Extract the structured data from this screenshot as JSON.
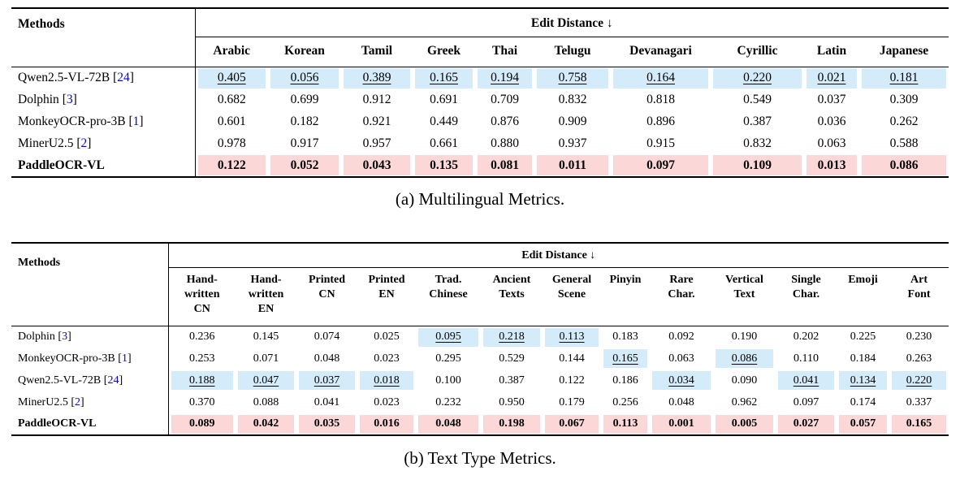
{
  "colors": {
    "second_best_bg": "#D4EBF9",
    "best_bg": "#FCD7D7",
    "citation": "#0000EE"
  },
  "tables": [
    {
      "id": "multilingual",
      "caption": "(a) Multilingual Metrics.",
      "methods_header": "Methods",
      "group_header": "Edit Distance ↓",
      "columns": [
        {
          "label": "Arabic",
          "lines": [
            "Arabic"
          ]
        },
        {
          "label": "Korean",
          "lines": [
            "Korean"
          ]
        },
        {
          "label": "Tamil",
          "lines": [
            "Tamil"
          ]
        },
        {
          "label": "Greek",
          "lines": [
            "Greek"
          ]
        },
        {
          "label": "Thai",
          "lines": [
            "Thai"
          ]
        },
        {
          "label": "Telugu",
          "lines": [
            "Telugu"
          ]
        },
        {
          "label": "Devanagari",
          "lines": [
            "Devanagari"
          ]
        },
        {
          "label": "Cyrillic",
          "lines": [
            "Cyrillic"
          ]
        },
        {
          "label": "Latin",
          "lines": [
            "Latin"
          ]
        },
        {
          "label": "Japanese",
          "lines": [
            "Japanese"
          ]
        }
      ],
      "rows": [
        {
          "method": "Qwen2.5-VL-72B",
          "cite": "24",
          "bold": false,
          "values": [
            {
              "v": "0.405",
              "hl": "second",
              "u": true
            },
            {
              "v": "0.056",
              "hl": "second",
              "u": true
            },
            {
              "v": "0.389",
              "hl": "second",
              "u": true
            },
            {
              "v": "0.165",
              "hl": "second",
              "u": true
            },
            {
              "v": "0.194",
              "hl": "second",
              "u": true
            },
            {
              "v": "0.758",
              "hl": "second",
              "u": true
            },
            {
              "v": "0.164",
              "hl": "second",
              "u": true
            },
            {
              "v": "0.220",
              "hl": "second",
              "u": true
            },
            {
              "v": "0.021",
              "hl": "second",
              "u": true
            },
            {
              "v": "0.181",
              "hl": "second",
              "u": true
            }
          ]
        },
        {
          "method": "Dolphin",
          "cite": "3",
          "bold": false,
          "values": [
            {
              "v": "0.682"
            },
            {
              "v": "0.699"
            },
            {
              "v": "0.912"
            },
            {
              "v": "0.691"
            },
            {
              "v": "0.709"
            },
            {
              "v": "0.832"
            },
            {
              "v": "0.818"
            },
            {
              "v": "0.549"
            },
            {
              "v": "0.037"
            },
            {
              "v": "0.309"
            }
          ]
        },
        {
          "method": "MonkeyOCR-pro-3B",
          "cite": "1",
          "bold": false,
          "values": [
            {
              "v": "0.601"
            },
            {
              "v": "0.182"
            },
            {
              "v": "0.921"
            },
            {
              "v": "0.449"
            },
            {
              "v": "0.876"
            },
            {
              "v": "0.909"
            },
            {
              "v": "0.896"
            },
            {
              "v": "0.387"
            },
            {
              "v": "0.036"
            },
            {
              "v": "0.262"
            }
          ]
        },
        {
          "method": "MinerU2.5",
          "cite": "2",
          "bold": false,
          "values": [
            {
              "v": "0.978"
            },
            {
              "v": "0.917"
            },
            {
              "v": "0.957"
            },
            {
              "v": "0.661"
            },
            {
              "v": "0.880"
            },
            {
              "v": "0.937"
            },
            {
              "v": "0.915"
            },
            {
              "v": "0.832"
            },
            {
              "v": "0.063"
            },
            {
              "v": "0.588"
            }
          ]
        },
        {
          "method": "PaddleOCR-VL",
          "cite": null,
          "bold": true,
          "values": [
            {
              "v": "0.122",
              "hl": "best"
            },
            {
              "v": "0.052",
              "hl": "best"
            },
            {
              "v": "0.043",
              "hl": "best"
            },
            {
              "v": "0.135",
              "hl": "best"
            },
            {
              "v": "0.081",
              "hl": "best"
            },
            {
              "v": "0.011",
              "hl": "best"
            },
            {
              "v": "0.097",
              "hl": "best"
            },
            {
              "v": "0.109",
              "hl": "best"
            },
            {
              "v": "0.013",
              "hl": "best"
            },
            {
              "v": "0.086",
              "hl": "best"
            }
          ]
        }
      ]
    },
    {
      "id": "texttype",
      "caption": "(b) Text Type Metrics.",
      "methods_header": "Methods",
      "group_header": "Edit Distance ↓",
      "columns": [
        {
          "label": "Hand-written CN",
          "lines": [
            "Hand-",
            "written",
            "CN"
          ]
        },
        {
          "label": "Hand-written EN",
          "lines": [
            "Hand-",
            "written",
            "EN"
          ]
        },
        {
          "label": "Printed CN",
          "lines": [
            "Printed",
            "CN"
          ]
        },
        {
          "label": "Printed EN",
          "lines": [
            "Printed",
            "EN"
          ]
        },
        {
          "label": "Trad. Chinese",
          "lines": [
            "Trad.",
            "Chinese"
          ]
        },
        {
          "label": "Ancient Texts",
          "lines": [
            "Ancient",
            "Texts"
          ]
        },
        {
          "label": "General Scene",
          "lines": [
            "General",
            "Scene"
          ]
        },
        {
          "label": "Pinyin",
          "lines": [
            "Pinyin"
          ]
        },
        {
          "label": "Rare Char.",
          "lines": [
            "Rare",
            "Char."
          ]
        },
        {
          "label": "Vertical Text",
          "lines": [
            "Vertical",
            "Text"
          ]
        },
        {
          "label": "Single Char.",
          "lines": [
            "Single",
            "Char."
          ]
        },
        {
          "label": "Emoji",
          "lines": [
            "Emoji"
          ]
        },
        {
          "label": "Art Font",
          "lines": [
            "Art",
            "Font"
          ]
        }
      ],
      "rows": [
        {
          "method": "Dolphin",
          "cite": "3",
          "bold": false,
          "values": [
            {
              "v": "0.236"
            },
            {
              "v": "0.145"
            },
            {
              "v": "0.074"
            },
            {
              "v": "0.025"
            },
            {
              "v": "0.095",
              "hl": "second",
              "u": true
            },
            {
              "v": "0.218",
              "hl": "second",
              "u": true
            },
            {
              "v": "0.113",
              "hl": "second",
              "u": true
            },
            {
              "v": "0.183"
            },
            {
              "v": "0.092"
            },
            {
              "v": "0.190"
            },
            {
              "v": "0.202"
            },
            {
              "v": "0.225"
            },
            {
              "v": "0.230"
            }
          ]
        },
        {
          "method": "MonkeyOCR-pro-3B",
          "cite": "1",
          "bold": false,
          "values": [
            {
              "v": "0.253"
            },
            {
              "v": "0.071"
            },
            {
              "v": "0.048"
            },
            {
              "v": "0.023"
            },
            {
              "v": "0.295"
            },
            {
              "v": "0.529"
            },
            {
              "v": "0.144"
            },
            {
              "v": "0.165",
              "hl": "second",
              "u": true
            },
            {
              "v": "0.063"
            },
            {
              "v": "0.086",
              "hl": "second",
              "u": true
            },
            {
              "v": "0.110"
            },
            {
              "v": "0.184"
            },
            {
              "v": "0.263"
            }
          ]
        },
        {
          "method": "Qwen2.5-VL-72B",
          "cite": "24",
          "bold": false,
          "values": [
            {
              "v": "0.188",
              "hl": "second",
              "u": true
            },
            {
              "v": "0.047",
              "hl": "second",
              "u": true
            },
            {
              "v": "0.037",
              "hl": "second",
              "u": true
            },
            {
              "v": "0.018",
              "hl": "second",
              "u": true
            },
            {
              "v": "0.100"
            },
            {
              "v": "0.387"
            },
            {
              "v": "0.122"
            },
            {
              "v": "0.186"
            },
            {
              "v": "0.034",
              "hl": "second",
              "u": true
            },
            {
              "v": "0.090"
            },
            {
              "v": "0.041",
              "hl": "second",
              "u": true
            },
            {
              "v": "0.134",
              "hl": "second",
              "u": true
            },
            {
              "v": "0.220",
              "hl": "second",
              "u": true
            }
          ]
        },
        {
          "method": "MinerU2.5",
          "cite": "2",
          "bold": false,
          "values": [
            {
              "v": "0.370"
            },
            {
              "v": "0.088"
            },
            {
              "v": "0.041"
            },
            {
              "v": "0.023"
            },
            {
              "v": "0.232"
            },
            {
              "v": "0.950"
            },
            {
              "v": "0.179"
            },
            {
              "v": "0.256"
            },
            {
              "v": "0.048"
            },
            {
              "v": "0.962"
            },
            {
              "v": "0.097"
            },
            {
              "v": "0.174"
            },
            {
              "v": "0.337"
            }
          ]
        },
        {
          "method": "PaddleOCR-VL",
          "cite": null,
          "bold": true,
          "values": [
            {
              "v": "0.089",
              "hl": "best"
            },
            {
              "v": "0.042",
              "hl": "best"
            },
            {
              "v": "0.035",
              "hl": "best"
            },
            {
              "v": "0.016",
              "hl": "best"
            },
            {
              "v": "0.048",
              "hl": "best"
            },
            {
              "v": "0.198",
              "hl": "best"
            },
            {
              "v": "0.067",
              "hl": "best"
            },
            {
              "v": "0.113",
              "hl": "best"
            },
            {
              "v": "0.001",
              "hl": "best"
            },
            {
              "v": "0.005",
              "hl": "best"
            },
            {
              "v": "0.027",
              "hl": "best"
            },
            {
              "v": "0.057",
              "hl": "best"
            },
            {
              "v": "0.165",
              "hl": "best"
            }
          ]
        }
      ]
    }
  ]
}
